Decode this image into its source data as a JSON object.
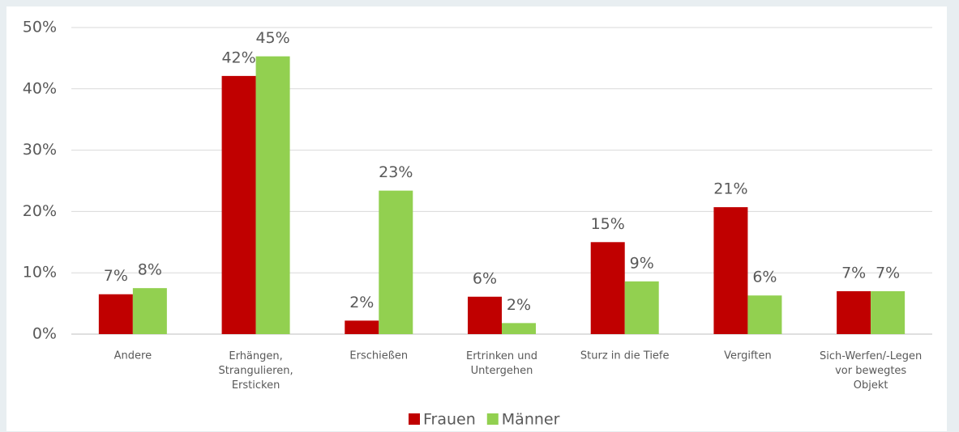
{
  "chart_data": {
    "type": "bar",
    "categories": [
      "Andere",
      "Erhängen,\nStrangulieren,\nErsticken",
      "Erschießen",
      "Ertrinken und\nUntergehen",
      "Sturz in die Tiefe",
      "Vergiften",
      "Sich-Werfen/-Legen\nvor bewegtes\nObjekt"
    ],
    "series": [
      {
        "name": "Frauen",
        "color": "#c00000",
        "values": [
          6.5,
          42.1,
          2.2,
          6.1,
          15.0,
          20.7,
          7.0
        ],
        "value_labels": [
          "7%",
          "42%",
          "2%",
          "6%",
          "15%",
          "21%",
          "7%"
        ]
      },
      {
        "name": "Männer",
        "color": "#92d050",
        "values": [
          7.5,
          45.3,
          23.4,
          1.8,
          8.6,
          6.3,
          7.0
        ],
        "value_labels": [
          "8%",
          "45%",
          "23%",
          "2%",
          "9%",
          "6%",
          "7%"
        ]
      }
    ],
    "ylim": [
      0,
      50
    ],
    "yticks": [
      {
        "value": 0,
        "label": "0%"
      },
      {
        "value": 10,
        "label": "10%"
      },
      {
        "value": 20,
        "label": "20%"
      },
      {
        "value": 30,
        "label": "30%"
      },
      {
        "value": 40,
        "label": "40%"
      },
      {
        "value": 50,
        "label": "50%"
      }
    ],
    "grid": true,
    "legend": "bottom"
  }
}
